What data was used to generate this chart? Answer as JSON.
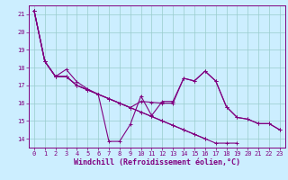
{
  "xlabel": "Windchill (Refroidissement éolien,°C)",
  "bg_color": "#cceeff",
  "line_color": "#800080",
  "grid_color": "#99cccc",
  "xlim": [
    -0.5,
    23.5
  ],
  "ylim": [
    13.5,
    21.5
  ],
  "yticks": [
    14,
    15,
    16,
    17,
    18,
    19,
    20,
    21
  ],
  "xticks": [
    0,
    1,
    2,
    3,
    4,
    5,
    6,
    7,
    8,
    9,
    10,
    11,
    12,
    13,
    14,
    15,
    16,
    17,
    18,
    19,
    20,
    21,
    22,
    23
  ],
  "series": [
    [
      21.2,
      18.35,
      17.5,
      17.9,
      17.2,
      16.8,
      16.5,
      13.85,
      13.85,
      14.8,
      16.4,
      15.3,
      16.1,
      16.1,
      17.4,
      17.25,
      17.8,
      17.25,
      15.8,
      15.2,
      15.1,
      14.85,
      14.85,
      14.5
    ],
    [
      21.2,
      18.35,
      17.5,
      17.5,
      17.0,
      16.75,
      16.5,
      16.25,
      16.0,
      15.75,
      15.5,
      15.25,
      15.0,
      14.75,
      14.5,
      14.25,
      14.0,
      null,
      null,
      null,
      null,
      null,
      null,
      null
    ],
    [
      21.2,
      18.35,
      17.5,
      17.5,
      17.0,
      16.75,
      16.5,
      16.25,
      16.0,
      15.75,
      15.5,
      15.25,
      15.0,
      14.75,
      14.5,
      14.25,
      14.0,
      13.75,
      13.75,
      13.75,
      null,
      null,
      null,
      null
    ],
    [
      21.2,
      18.35,
      17.5,
      17.5,
      17.0,
      16.75,
      16.5,
      16.25,
      16.0,
      15.75,
      16.1,
      16.05,
      16.0,
      16.0,
      17.4,
      17.25,
      17.8,
      17.25,
      15.8,
      15.2,
      15.1,
      14.85,
      14.85,
      14.5
    ]
  ],
  "marker": "+",
  "marker_size": 3,
  "linewidth": 0.8,
  "tick_fontsize": 5.0,
  "label_fontsize": 6.0
}
